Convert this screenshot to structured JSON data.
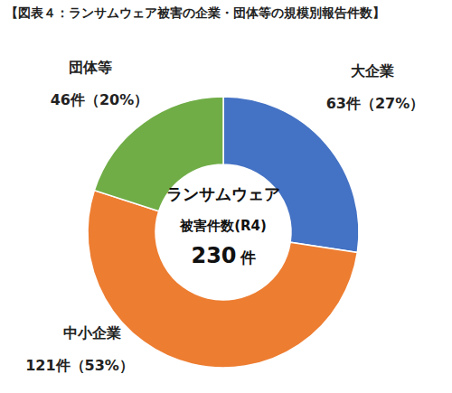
{
  "chart_data": {
    "type": "donut",
    "title": "【図表４：ランサムウェア被害の企業・団体等の規模別報告件数】",
    "categories": [
      "大企業",
      "中小企業",
      "団体等"
    ],
    "values": [
      63,
      121,
      46
    ],
    "value_labels": [
      "63件（27%）",
      "121件（53%）",
      "46件（20%）"
    ],
    "colors": [
      "#4472c4",
      "#ed7d31",
      "#70ad47"
    ],
    "data_labels": true,
    "annotations": [
      "ランサムウェア",
      "被害件数(R4)",
      "230 件"
    ]
  }
}
